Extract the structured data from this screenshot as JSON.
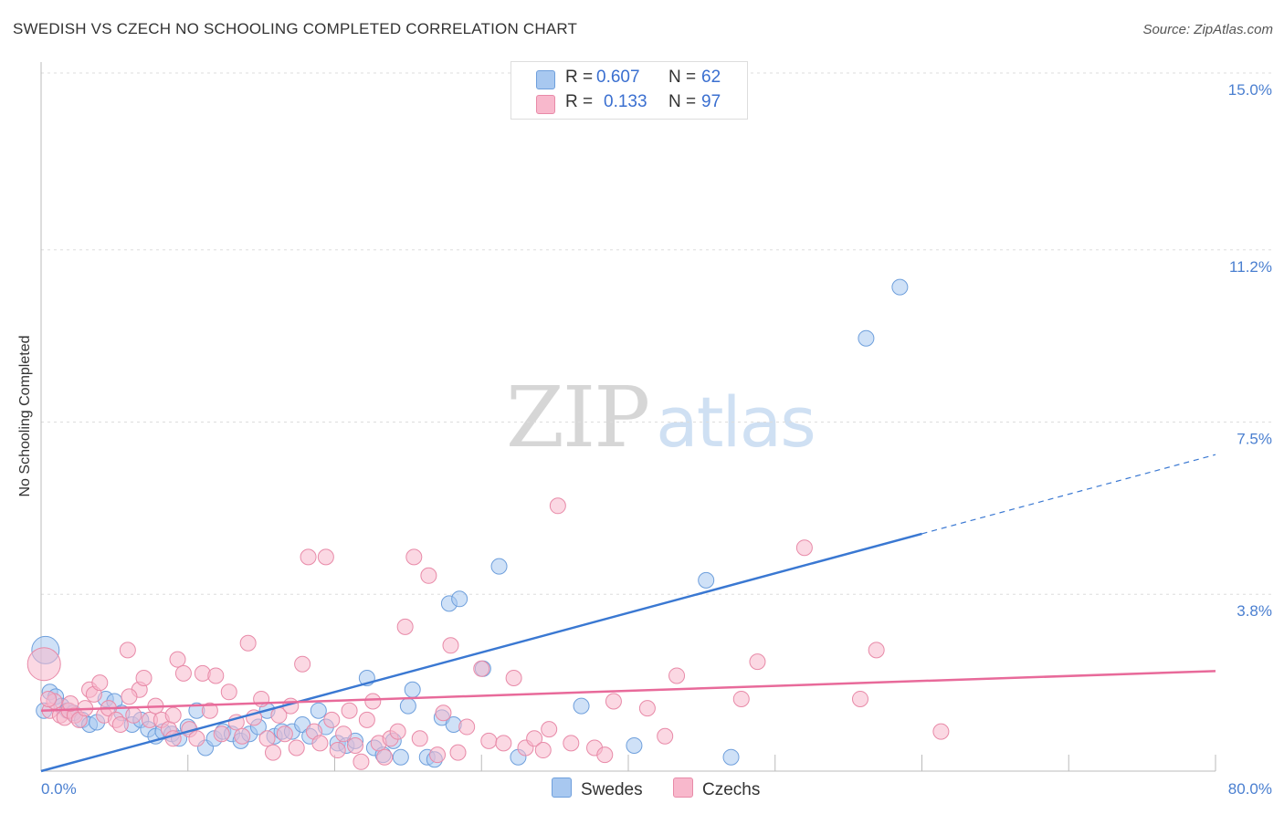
{
  "title": "SWEDISH VS CZECH NO SCHOOLING COMPLETED CORRELATION CHART",
  "source": "Source: ZipAtlas.com",
  "watermark": {
    "part1": "ZIP",
    "part2": "atlas"
  },
  "legend": {
    "rows": [
      {
        "r_label": "R =",
        "r_value": "0.607",
        "n_label": "N =",
        "n_value": "62",
        "color": "#a8c8f0"
      },
      {
        "r_label": "R =",
        "r_value": "0.133",
        "n_label": "N =",
        "n_value": "97",
        "color": "#f8b8cc"
      }
    ]
  },
  "bottom_legend": [
    {
      "label": "Swedes",
      "color": "#a8c8f0"
    },
    {
      "label": "Czechs",
      "color": "#f8b8cc"
    }
  ],
  "chart_data": {
    "type": "scatter",
    "title": "SWEDISH VS CZECH NO SCHOOLING COMPLETED CORRELATION CHART",
    "xlabel": "",
    "ylabel": "No Schooling Completed",
    "xlim": [
      0,
      80
    ],
    "ylim": [
      0,
      15
    ],
    "x_tick_labels": [
      "0.0%",
      "80.0%"
    ],
    "y_ticks": [
      {
        "value": 3.8,
        "label": "3.8%"
      },
      {
        "value": 7.5,
        "label": "7.5%"
      },
      {
        "value": 11.2,
        "label": "11.2%"
      },
      {
        "value": 15.0,
        "label": "15.0%"
      }
    ],
    "grid": "horizontal dashed",
    "legend_position": "top-center",
    "series": [
      {
        "name": "Swedes",
        "color": "#6e9fdc",
        "fill": "#a8c8f0",
        "points": [
          [
            0.3,
            2.6,
            1
          ],
          [
            0.6,
            1.7,
            1
          ],
          [
            1.0,
            1.6,
            1
          ],
          [
            1.4,
            1.4,
            1
          ],
          [
            1.8,
            1.3,
            1
          ],
          [
            2.2,
            1.25,
            1
          ],
          [
            2.8,
            1.1,
            1
          ],
          [
            3.3,
            1.0,
            1
          ],
          [
            3.8,
            1.05,
            1
          ],
          [
            4.4,
            1.55,
            1
          ],
          [
            5.0,
            1.5,
            1
          ],
          [
            5.5,
            1.25,
            1
          ],
          [
            6.2,
            1.0,
            1
          ],
          [
            6.8,
            1.1,
            1
          ],
          [
            7.3,
            0.9,
            1
          ],
          [
            7.8,
            0.75,
            1
          ],
          [
            8.3,
            0.85,
            1
          ],
          [
            8.9,
            0.8,
            1
          ],
          [
            9.4,
            0.7,
            1
          ],
          [
            10.0,
            0.95,
            1
          ],
          [
            10.6,
            1.3,
            1
          ],
          [
            11.2,
            0.5,
            1
          ],
          [
            11.8,
            0.7,
            1
          ],
          [
            12.4,
            0.85,
            1
          ],
          [
            13.0,
            0.8,
            1
          ],
          [
            13.6,
            0.65,
            1
          ],
          [
            14.2,
            0.8,
            1
          ],
          [
            14.8,
            0.95,
            1
          ],
          [
            15.4,
            1.3,
            1
          ],
          [
            15.9,
            0.75,
            1
          ],
          [
            16.4,
            0.85,
            1
          ],
          [
            17.1,
            0.85,
            1
          ],
          [
            17.8,
            1.0,
            1
          ],
          [
            18.3,
            0.75,
            1
          ],
          [
            18.9,
            1.3,
            1
          ],
          [
            19.4,
            0.95,
            1
          ],
          [
            20.2,
            0.6,
            1
          ],
          [
            20.8,
            0.55,
            1
          ],
          [
            21.4,
            0.65,
            1
          ],
          [
            22.2,
            2.0,
            1
          ],
          [
            22.7,
            0.5,
            1
          ],
          [
            23.3,
            0.35,
            1
          ],
          [
            24.0,
            0.65,
            1
          ],
          [
            24.5,
            0.3,
            1
          ],
          [
            25.0,
            1.4,
            1
          ],
          [
            25.3,
            1.75,
            1
          ],
          [
            26.3,
            0.3,
            1
          ],
          [
            26.8,
            0.25,
            1
          ],
          [
            27.3,
            1.15,
            1
          ],
          [
            27.8,
            3.6,
            1
          ],
          [
            28.1,
            1.0,
            1
          ],
          [
            28.5,
            3.7,
            1
          ],
          [
            30.1,
            2.2,
            1
          ],
          [
            31.2,
            4.4,
            1
          ],
          [
            32.5,
            0.3,
            1
          ],
          [
            36.8,
            1.4,
            1
          ],
          [
            40.4,
            0.55,
            1
          ],
          [
            45.3,
            4.1,
            1
          ],
          [
            47.0,
            0.3,
            1
          ],
          [
            56.2,
            9.3,
            1
          ],
          [
            58.5,
            10.4,
            1
          ],
          [
            0.2,
            1.3,
            1
          ]
        ]
      },
      {
        "name": "Czechs",
        "color": "#e88aa8",
        "fill": "#f8b8cc",
        "points": [
          [
            0.2,
            2.3,
            1
          ],
          [
            0.6,
            1.3,
            1
          ],
          [
            0.9,
            1.5,
            1
          ],
          [
            1.3,
            1.2,
            1
          ],
          [
            1.6,
            1.15,
            1
          ],
          [
            1.9,
            1.3,
            1
          ],
          [
            2.3,
            1.2,
            1
          ],
          [
            2.6,
            1.1,
            1
          ],
          [
            3.0,
            1.35,
            1
          ],
          [
            3.3,
            1.75,
            1
          ],
          [
            3.6,
            1.65,
            1
          ],
          [
            4.0,
            1.9,
            1
          ],
          [
            4.3,
            1.2,
            1
          ],
          [
            4.6,
            1.35,
            1
          ],
          [
            5.1,
            1.1,
            1
          ],
          [
            5.4,
            1.0,
            1
          ],
          [
            5.9,
            2.6,
            1
          ],
          [
            6.3,
            1.2,
            1
          ],
          [
            6.7,
            1.75,
            1
          ],
          [
            7.0,
            2.0,
            1
          ],
          [
            7.4,
            1.1,
            1
          ],
          [
            7.8,
            1.4,
            1
          ],
          [
            8.2,
            1.1,
            1
          ],
          [
            8.7,
            0.9,
            1
          ],
          [
            9.0,
            0.7,
            1
          ],
          [
            9.3,
            2.4,
            1
          ],
          [
            9.7,
            2.1,
            1
          ],
          [
            10.1,
            0.9,
            1
          ],
          [
            10.6,
            0.7,
            1
          ],
          [
            11.0,
            2.1,
            1
          ],
          [
            11.5,
            1.3,
            1
          ],
          [
            11.9,
            2.05,
            1
          ],
          [
            12.3,
            0.8,
            1
          ],
          [
            12.8,
            1.7,
            1
          ],
          [
            13.3,
            1.05,
            1
          ],
          [
            13.7,
            0.75,
            1
          ],
          [
            14.1,
            2.75,
            1
          ],
          [
            14.5,
            1.15,
            1
          ],
          [
            15.0,
            1.55,
            1
          ],
          [
            15.4,
            0.7,
            1
          ],
          [
            15.8,
            0.4,
            1
          ],
          [
            16.2,
            1.2,
            1
          ],
          [
            16.6,
            0.8,
            1
          ],
          [
            17.0,
            1.4,
            1
          ],
          [
            17.4,
            0.5,
            1
          ],
          [
            17.8,
            2.3,
            1
          ],
          [
            18.2,
            4.6,
            1
          ],
          [
            18.6,
            0.85,
            1
          ],
          [
            19.0,
            0.6,
            1
          ],
          [
            19.4,
            4.6,
            1
          ],
          [
            19.8,
            1.1,
            1
          ],
          [
            20.2,
            0.45,
            1
          ],
          [
            20.6,
            0.8,
            1
          ],
          [
            21.0,
            1.3,
            1
          ],
          [
            21.4,
            0.55,
            1
          ],
          [
            21.8,
            0.2,
            1
          ],
          [
            22.2,
            1.1,
            1
          ],
          [
            22.6,
            1.5,
            1
          ],
          [
            23.0,
            0.6,
            1
          ],
          [
            23.4,
            0.3,
            1
          ],
          [
            23.8,
            0.7,
            1
          ],
          [
            24.3,
            0.85,
            1
          ],
          [
            24.8,
            3.1,
            1
          ],
          [
            25.4,
            4.6,
            1
          ],
          [
            25.8,
            0.7,
            1
          ],
          [
            26.4,
            4.2,
            1
          ],
          [
            27.0,
            0.35,
            1
          ],
          [
            27.4,
            1.25,
            1
          ],
          [
            27.9,
            2.7,
            1
          ],
          [
            28.4,
            0.4,
            1
          ],
          [
            29.0,
            0.95,
            1
          ],
          [
            30.0,
            2.2,
            1
          ],
          [
            30.5,
            0.65,
            1
          ],
          [
            31.5,
            0.6,
            1
          ],
          [
            32.2,
            2.0,
            1
          ],
          [
            33.0,
            0.5,
            1
          ],
          [
            33.6,
            0.7,
            1
          ],
          [
            34.2,
            0.45,
            1
          ],
          [
            34.6,
            0.9,
            1
          ],
          [
            35.2,
            5.7,
            1
          ],
          [
            36.1,
            0.6,
            1
          ],
          [
            37.7,
            0.5,
            1
          ],
          [
            38.4,
            0.35,
            1
          ],
          [
            39.0,
            1.5,
            1
          ],
          [
            41.3,
            1.35,
            1
          ],
          [
            42.5,
            0.75,
            1
          ],
          [
            43.3,
            2.05,
            1
          ],
          [
            47.7,
            1.55,
            1
          ],
          [
            48.8,
            2.35,
            1
          ],
          [
            52.0,
            4.8,
            1
          ],
          [
            55.8,
            1.55,
            1
          ],
          [
            56.9,
            2.6,
            1
          ],
          [
            61.3,
            0.85,
            1
          ],
          [
            0.5,
            1.55,
            1
          ],
          [
            2.0,
            1.45,
            1
          ],
          [
            6.0,
            1.6,
            1
          ],
          [
            9.0,
            1.2,
            1
          ]
        ]
      }
    ],
    "trendlines": [
      {
        "series": "Swedes",
        "x": [
          0,
          80
        ],
        "y": [
          0.0,
          6.8
        ],
        "solid_until_x": 60,
        "color": "#3a78d2"
      },
      {
        "series": "Czechs",
        "x": [
          0,
          80
        ],
        "y": [
          1.3,
          2.15
        ],
        "color": "#e86a9a"
      }
    ]
  }
}
